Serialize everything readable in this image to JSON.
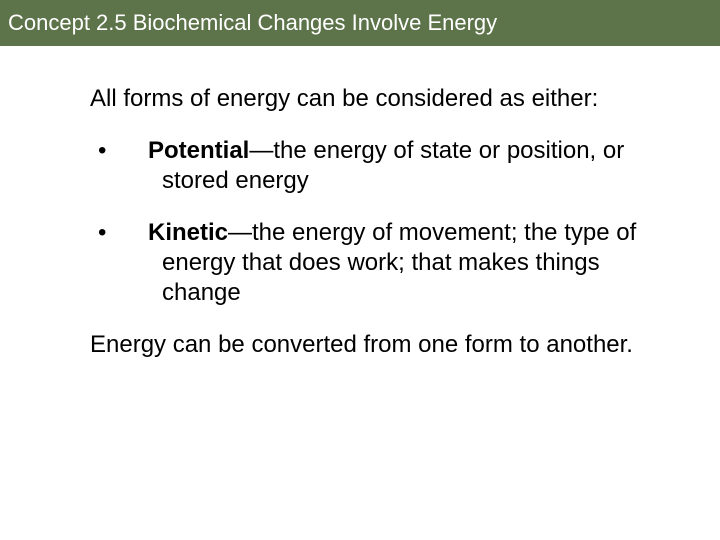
{
  "header": {
    "title": "Concept 2.5 Biochemical Changes Involve Energy",
    "background_color": "#5d734a",
    "text_color": "#ffffff",
    "fontsize": 22
  },
  "body": {
    "intro": "All forms of energy can be considered as either:",
    "bullets": [
      {
        "mark": "•",
        "term": "Potential",
        "dash": "—",
        "desc": "the energy of state or position, or stored energy"
      },
      {
        "mark": "•",
        "term": "Kinetic",
        "dash": "—",
        "desc": "the energy of movement; the type of energy that does work; that makes things change"
      }
    ],
    "closing": "Energy can be converted from one form to another.",
    "text_color": "#000000",
    "fontsize": 24,
    "background_color": "#ffffff"
  }
}
